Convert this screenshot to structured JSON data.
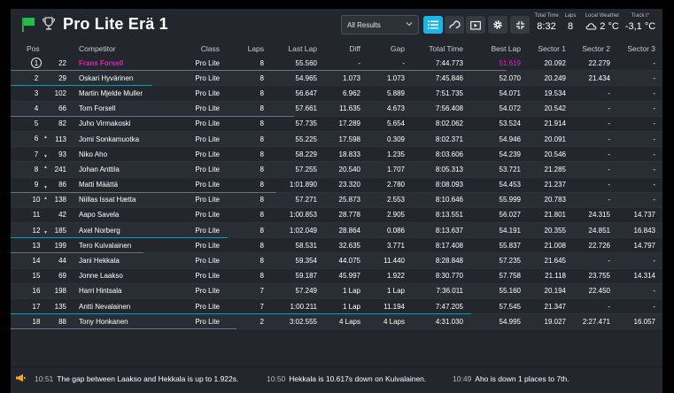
{
  "header": {
    "title": "Pro Lite Erä 1",
    "filter_value": "All Results",
    "stats": [
      {
        "label": "Total Time",
        "value": "8:32"
      },
      {
        "label": "Laps",
        "value": "8"
      },
      {
        "label": "Local Weather",
        "value": "2 °C",
        "icon": "cloud-icon"
      },
      {
        "label": "Track t°",
        "value": "-3,1 °C"
      }
    ]
  },
  "columns": {
    "pos": "Pos",
    "competitor": "Competitor",
    "class": "Class",
    "laps": "Laps",
    "last_lap": "Last Lap",
    "diff": "Diff",
    "gap": "Gap",
    "total": "Total Time",
    "best": "Best Lap",
    "s1": "Sector 1",
    "s2": "Sector 2",
    "s3": "Sector 3"
  },
  "rows": [
    {
      "pos": "1",
      "trend": "",
      "num": "22",
      "name": "Frans Forsell",
      "class": "Pro Lite",
      "laps": "8",
      "last": "55.560",
      "diff": "-",
      "gap": "-",
      "total": "7:44.773",
      "best": "51.619",
      "s1": "20.092",
      "s2": "22.279",
      "s3": "-"
    },
    {
      "pos": "2",
      "trend": "",
      "num": "29",
      "name": "Oskari Hyvärinen",
      "class": "Pro Lite",
      "laps": "8",
      "last": "54.965",
      "diff": "1.073",
      "gap": "1.073",
      "total": "7:45.846",
      "best": "52.070",
      "s1": "20.249",
      "s2": "21.434",
      "s3": "-"
    },
    {
      "pos": "3",
      "trend": "",
      "num": "102",
      "name": "Martin Mjelde Muller",
      "class": "Pro Lite",
      "laps": "8",
      "last": "56.647",
      "diff": "6.962",
      "gap": "5.889",
      "total": "7:51.735",
      "best": "54.071",
      "s1": "19.534",
      "s2": "-",
      "s3": "-"
    },
    {
      "pos": "4",
      "trend": "",
      "num": "66",
      "name": "Tom Forsell",
      "class": "Pro Lite",
      "laps": "8",
      "last": "57.661",
      "diff": "11.635",
      "gap": "4.673",
      "total": "7:56.408",
      "best": "54.072",
      "s1": "20.542",
      "s2": "-",
      "s3": "-"
    },
    {
      "pos": "5",
      "trend": "",
      "num": "82",
      "name": "Juho Virmakoski",
      "class": "Pro Lite",
      "laps": "8",
      "last": "57.735",
      "diff": "17.289",
      "gap": "5.654",
      "total": "8:02.062",
      "best": "53.524",
      "s1": "21.914",
      "s2": "-",
      "s3": "-"
    },
    {
      "pos": "6",
      "trend": "up",
      "num": "113",
      "name": "Jomi Sonkamuotka",
      "class": "Pro Lite",
      "laps": "8",
      "last": "55.225",
      "diff": "17.598",
      "gap": "0.309",
      "total": "8:02.371",
      "best": "54.946",
      "s1": "20.091",
      "s2": "-",
      "s3": "-"
    },
    {
      "pos": "7",
      "trend": "down",
      "num": "93",
      "name": "Niko Aho",
      "class": "Pro Lite",
      "laps": "8",
      "last": "58.229",
      "diff": "18.833",
      "gap": "1.235",
      "total": "8:03.606",
      "best": "54.239",
      "s1": "20.546",
      "s2": "-",
      "s3": "-"
    },
    {
      "pos": "8",
      "trend": "up",
      "num": "241",
      "name": "Johan Anttila",
      "class": "Pro Lite",
      "laps": "8",
      "last": "57.255",
      "diff": "20.540",
      "gap": "1.707",
      "total": "8:05.313",
      "best": "53.721",
      "s1": "21.285",
      "s2": "-",
      "s3": "-"
    },
    {
      "pos": "9",
      "trend": "down",
      "num": "86",
      "name": "Matti Määttä",
      "class": "Pro Lite",
      "laps": "8",
      "last": "1:01.890",
      "diff": "23.320",
      "gap": "2.780",
      "total": "8:08.093",
      "best": "54.453",
      "s1": "21.237",
      "s2": "-",
      "s3": "-"
    },
    {
      "pos": "10",
      "trend": "up",
      "num": "138",
      "name": "Niillas Issat Hætta",
      "class": "Pro Lite",
      "laps": "8",
      "last": "57.271",
      "diff": "25.873",
      "gap": "2.553",
      "total": "8:10.646",
      "best": "55.999",
      "s1": "20.783",
      "s2": "-",
      "s3": "-"
    },
    {
      "pos": "11",
      "trend": "",
      "num": "42",
      "name": "Aapo Savela",
      "class": "Pro Lite",
      "laps": "8",
      "last": "1:00.853",
      "diff": "28.778",
      "gap": "2.905",
      "total": "8:13.551",
      "best": "56.027",
      "s1": "21.801",
      "s2": "24.315",
      "s3": "14.737"
    },
    {
      "pos": "12",
      "trend": "down",
      "num": "185",
      "name": "Axel Norberg",
      "class": "Pro Lite",
      "laps": "8",
      "last": "1:02.049",
      "diff": "28.864",
      "gap": "0.086",
      "total": "8:13.637",
      "best": "54.191",
      "s1": "20.355",
      "s2": "24.851",
      "s3": "16.843"
    },
    {
      "pos": "13",
      "trend": "",
      "num": "199",
      "name": "Tero Kuivalainen",
      "class": "Pro Lite",
      "laps": "8",
      "last": "58.531",
      "diff": "32.635",
      "gap": "3.771",
      "total": "8:17.408",
      "best": "55.837",
      "s1": "21.008",
      "s2": "22.726",
      "s3": "14.797"
    },
    {
      "pos": "14",
      "trend": "",
      "num": "44",
      "name": "Jani Hekkala",
      "class": "Pro Lite",
      "laps": "8",
      "last": "59.354",
      "diff": "44.075",
      "gap": "11.440",
      "total": "8:28.848",
      "best": "57.235",
      "s1": "21.645",
      "s2": "-",
      "s3": "-"
    },
    {
      "pos": "15",
      "trend": "",
      "num": "69",
      "name": "Jonne Laakso",
      "class": "Pro Lite",
      "laps": "8",
      "last": "59.187",
      "diff": "45.997",
      "gap": "1.922",
      "total": "8:30.770",
      "best": "57.758",
      "s1": "21.118",
      "s2": "23.755",
      "s3": "14.314"
    },
    {
      "pos": "16",
      "trend": "",
      "num": "198",
      "name": "Harri Hintsala",
      "class": "Pro Lite",
      "laps": "7",
      "last": "57.249",
      "diff": "1 Lap",
      "gap": "1 Lap",
      "total": "7:36.011",
      "best": "55.160",
      "s1": "20.194",
      "s2": "22.450",
      "s3": "-"
    },
    {
      "pos": "17",
      "trend": "",
      "num": "135",
      "name": "Antti Nevalainen",
      "class": "Pro Lite",
      "laps": "7",
      "last": "1:00.211",
      "diff": "1 Lap",
      "gap": "11.194",
      "total": "7:47.205",
      "best": "57.545",
      "s1": "21.347",
      "s2": "-",
      "s3": "-"
    },
    {
      "pos": "18",
      "trend": "",
      "num": "88",
      "name": "Tony Honkanen",
      "class": "Pro Lite",
      "laps": "2",
      "last": "3:02.555",
      "diff": "4 Laps",
      "gap": "4 Laps",
      "total": "4:31.030",
      "best": "54.995",
      "s1": "19.027",
      "s2": "2:27.471",
      "s3": "16.057"
    }
  ],
  "ticker": [
    {
      "time": "10:51",
      "text": "The gap between Laakso and Hekkala is up to 1.922s."
    },
    {
      "time": "10:50",
      "text": "Hekkala is 10.617s down on Kuivalainen."
    },
    {
      "time": "10:49",
      "text": "Aho is down 1 places to 7th."
    }
  ],
  "colors": {
    "accent": "#1ab6e8",
    "highlight": "#e020c8",
    "flag": "#2fb84a",
    "horn": "#f5a623",
    "bg": "#23272d"
  }
}
